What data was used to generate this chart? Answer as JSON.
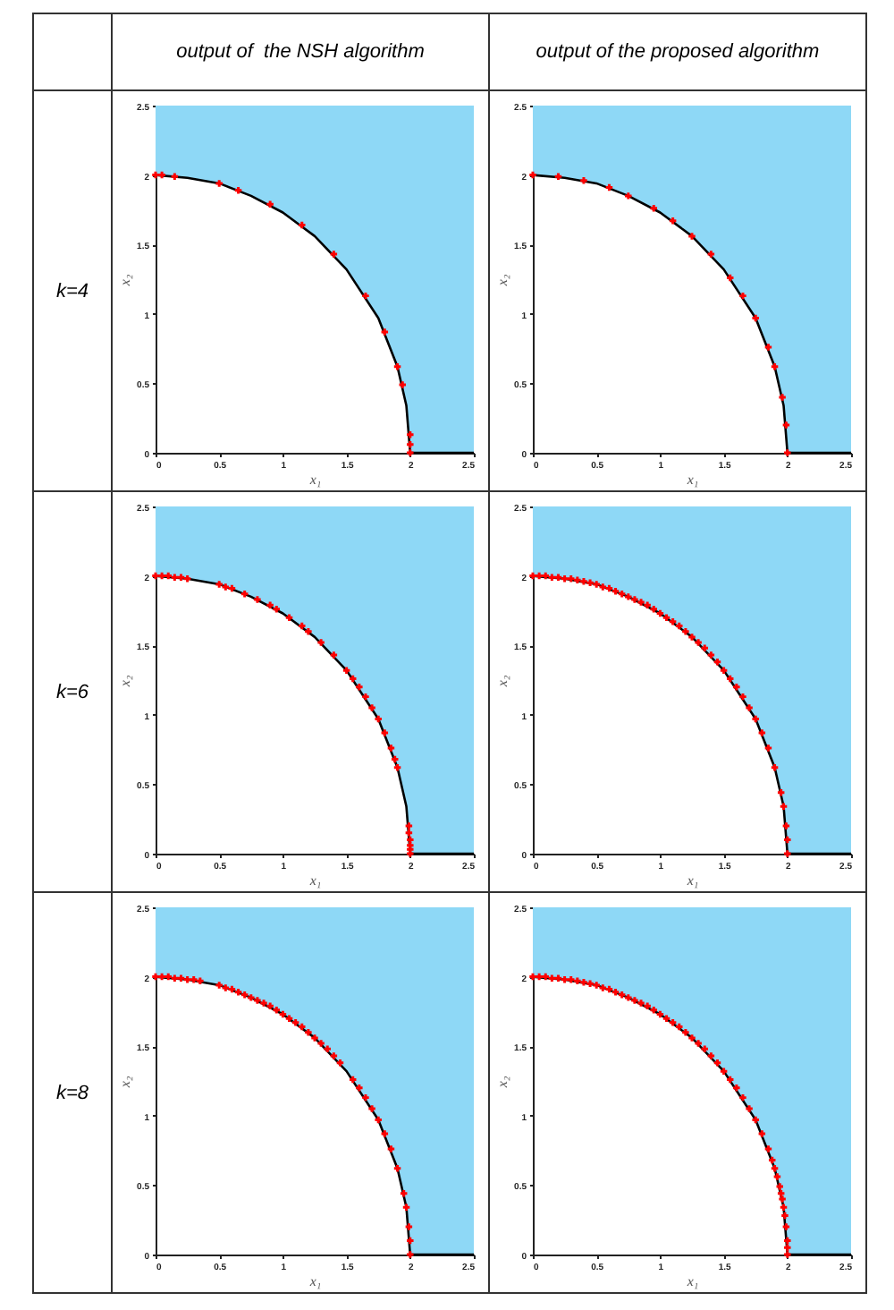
{
  "chart_data": [
    {
      "type": "scatter",
      "title": "output of  the NSH algorithm",
      "annotations": [
        "k=4"
      ],
      "xlabel": "x₁",
      "ylabel": "x₂",
      "xlim": [
        0,
        2.5
      ],
      "ylim": [
        0,
        2.5
      ],
      "xticks": [
        0,
        0.5,
        1,
        1.5,
        2,
        2.5
      ],
      "yticks": [
        0,
        0.5,
        1,
        1.5,
        2,
        2.5
      ],
      "series": [
        {
          "type": "line",
          "color": "#000000",
          "x": [
            0,
            0.25,
            0.5,
            0.75,
            1,
            1.25,
            1.5,
            1.75,
            1.9,
            1.97,
            2,
            2.5
          ],
          "values": [
            2,
            1.98,
            1.94,
            1.85,
            1.73,
            1.56,
            1.32,
            0.97,
            0.62,
            0.34,
            0,
            0
          ],
          "lower": [
            2,
            1.98,
            1.94,
            1.85,
            1.73,
            1.56,
            1.32,
            0.97,
            0.62,
            0.34,
            0,
            0
          ],
          "upper": [
            2.5,
            2.5,
            2.5,
            2.5,
            2.5,
            2.5,
            2.5,
            2.5,
            2.5,
            2.5,
            2.5,
            2.5
          ]
        },
        {
          "type": "scatter",
          "marker": "cross",
          "color": "#ff0000",
          "x": [
            0,
            0.05,
            0.15,
            0.5,
            0.65,
            0.9,
            1.15,
            1.4,
            1.65,
            1.8,
            1.9,
            1.94,
            2,
            2,
            2
          ],
          "values": [
            2,
            2,
            1.99,
            1.94,
            1.89,
            1.79,
            1.64,
            1.43,
            1.13,
            0.87,
            0.62,
            0.49,
            0.13,
            0.06,
            0
          ]
        }
      ]
    },
    {
      "type": "scatter",
      "title": "output of the proposed algorithm",
      "xlabel": "x₁",
      "ylabel": "x₂",
      "xlim": [
        0,
        2.5
      ],
      "ylim": [
        0,
        2.5
      ],
      "xticks": [
        0,
        0.5,
        1,
        1.5,
        2,
        2.5
      ],
      "yticks": [
        0,
        0.5,
        1,
        1.5,
        2,
        2.5
      ],
      "series": [
        {
          "type": "line",
          "color": "#000000",
          "x": [
            0,
            0.25,
            0.5,
            0.75,
            1,
            1.25,
            1.5,
            1.75,
            1.9,
            1.97,
            2,
            2.5
          ],
          "values": [
            2,
            1.98,
            1.94,
            1.85,
            1.73,
            1.56,
            1.32,
            0.97,
            0.62,
            0.34,
            0,
            0
          ],
          "lower": [
            2,
            1.98,
            1.94,
            1.85,
            1.73,
            1.56,
            1.32,
            0.97,
            0.62,
            0.34,
            0,
            0
          ],
          "upper": [
            2.5,
            2.5,
            2.5,
            2.5,
            2.5,
            2.5,
            2.5,
            2.5,
            2.5,
            2.5,
            2.5,
            2.5
          ]
        },
        {
          "type": "scatter",
          "marker": "cross",
          "color": "#ff0000",
          "x": [
            0,
            0.2,
            0.4,
            0.6,
            0.75,
            0.95,
            1.1,
            1.25,
            1.4,
            1.55,
            1.65,
            1.75,
            1.85,
            1.9,
            1.96,
            1.99,
            2
          ],
          "values": [
            2,
            1.99,
            1.96,
            1.91,
            1.85,
            1.76,
            1.67,
            1.56,
            1.43,
            1.26,
            1.13,
            0.97,
            0.76,
            0.62,
            0.4,
            0.2,
            0
          ]
        }
      ]
    },
    {
      "type": "scatter",
      "annotations": [
        "k=6"
      ],
      "xlabel": "x₁",
      "ylabel": "x₂",
      "xlim": [
        0,
        2.5
      ],
      "ylim": [
        0,
        2.5
      ],
      "xticks": [
        0,
        0.5,
        1,
        1.5,
        2,
        2.5
      ],
      "yticks": [
        0,
        0.5,
        1,
        1.5,
        2,
        2.5
      ],
      "series": [
        {
          "type": "line",
          "color": "#000000",
          "x": [
            0,
            0.25,
            0.5,
            0.75,
            1,
            1.25,
            1.5,
            1.75,
            1.9,
            1.97,
            2,
            2.5
          ],
          "values": [
            2,
            1.98,
            1.94,
            1.85,
            1.73,
            1.56,
            1.32,
            0.97,
            0.62,
            0.34,
            0,
            0
          ],
          "lower": [
            2,
            1.98,
            1.94,
            1.85,
            1.73,
            1.56,
            1.32,
            0.97,
            0.62,
            0.34,
            0,
            0
          ],
          "upper": [
            2.5,
            2.5,
            2.5,
            2.5,
            2.5,
            2.5,
            2.5,
            2.5,
            2.5,
            2.5,
            2.5,
            2.5
          ]
        },
        {
          "type": "scatter",
          "marker": "cross",
          "color": "#ff0000",
          "x": [
            0,
            0.05,
            0.1,
            0.15,
            0.2,
            0.25,
            0.5,
            0.55,
            0.6,
            0.7,
            0.8,
            0.9,
            0.95,
            1.05,
            1.15,
            1.2,
            1.3,
            1.4,
            1.5,
            1.55,
            1.6,
            1.65,
            1.7,
            1.75,
            1.8,
            1.85,
            1.88,
            1.9,
            1.99,
            1.99,
            2,
            2,
            2,
            2
          ],
          "values": [
            2,
            2,
            2,
            1.99,
            1.99,
            1.98,
            1.94,
            1.92,
            1.91,
            1.87,
            1.83,
            1.79,
            1.76,
            1.7,
            1.64,
            1.6,
            1.52,
            1.43,
            1.32,
            1.26,
            1.2,
            1.13,
            1.05,
            0.97,
            0.87,
            0.76,
            0.68,
            0.62,
            0.2,
            0.15,
            0.1,
            0.06,
            0.03,
            0
          ]
        }
      ]
    },
    {
      "type": "scatter",
      "xlabel": "x₁",
      "ylabel": "x₂",
      "xlim": [
        0,
        2.5
      ],
      "ylim": [
        0,
        2.5
      ],
      "xticks": [
        0,
        0.5,
        1,
        1.5,
        2,
        2.5
      ],
      "yticks": [
        0,
        0.5,
        1,
        1.5,
        2,
        2.5
      ],
      "series": [
        {
          "type": "line",
          "color": "#000000",
          "x": [
            0,
            0.25,
            0.5,
            0.75,
            1,
            1.25,
            1.5,
            1.75,
            1.9,
            1.97,
            2,
            2.5
          ],
          "values": [
            2,
            1.98,
            1.94,
            1.85,
            1.73,
            1.56,
            1.32,
            0.97,
            0.62,
            0.34,
            0,
            0
          ],
          "lower": [
            2,
            1.98,
            1.94,
            1.85,
            1.73,
            1.56,
            1.32,
            0.97,
            0.62,
            0.34,
            0,
            0
          ],
          "upper": [
            2.5,
            2.5,
            2.5,
            2.5,
            2.5,
            2.5,
            2.5,
            2.5,
            2.5,
            2.5,
            2.5,
            2.5
          ]
        },
        {
          "type": "scatter",
          "marker": "cross",
          "color": "#ff0000",
          "x": [
            0,
            0.05,
            0.1,
            0.15,
            0.2,
            0.25,
            0.3,
            0.35,
            0.4,
            0.45,
            0.5,
            0.55,
            0.6,
            0.65,
            0.7,
            0.75,
            0.8,
            0.85,
            0.9,
            0.95,
            1,
            1.05,
            1.1,
            1.15,
            1.2,
            1.25,
            1.3,
            1.35,
            1.4,
            1.45,
            1.5,
            1.55,
            1.6,
            1.65,
            1.7,
            1.75,
            1.8,
            1.85,
            1.9,
            1.95,
            1.97,
            1.99,
            2,
            2
          ],
          "values": [
            2,
            2,
            2,
            1.99,
            1.99,
            1.98,
            1.98,
            1.97,
            1.96,
            1.95,
            1.94,
            1.92,
            1.91,
            1.89,
            1.87,
            1.85,
            1.83,
            1.81,
            1.79,
            1.76,
            1.73,
            1.7,
            1.67,
            1.64,
            1.6,
            1.56,
            1.52,
            1.48,
            1.43,
            1.38,
            1.32,
            1.26,
            1.2,
            1.13,
            1.05,
            0.97,
            0.87,
            0.76,
            0.62,
            0.44,
            0.34,
            0.2,
            0.1,
            0
          ]
        }
      ]
    },
    {
      "type": "scatter",
      "annotations": [
        "k=8"
      ],
      "xlabel": "x₁",
      "ylabel": "x₂",
      "xlim": [
        0,
        2.5
      ],
      "ylim": [
        0,
        2.5
      ],
      "xticks": [
        0,
        0.5,
        1,
        1.5,
        2,
        2.5
      ],
      "yticks": [
        0,
        0.5,
        1,
        1.5,
        2,
        2.5
      ],
      "series": [
        {
          "type": "line",
          "color": "#000000",
          "x": [
            0,
            0.25,
            0.5,
            0.75,
            1,
            1.25,
            1.5,
            1.75,
            1.9,
            1.97,
            2,
            2.5
          ],
          "values": [
            2,
            1.98,
            1.94,
            1.85,
            1.73,
            1.56,
            1.32,
            0.97,
            0.62,
            0.34,
            0,
            0
          ],
          "lower": [
            2,
            1.98,
            1.94,
            1.85,
            1.73,
            1.56,
            1.32,
            0.97,
            0.62,
            0.34,
            0,
            0
          ],
          "upper": [
            2.5,
            2.5,
            2.5,
            2.5,
            2.5,
            2.5,
            2.5,
            2.5,
            2.5,
            2.5,
            2.5,
            2.5
          ]
        },
        {
          "type": "scatter",
          "marker": "cross",
          "color": "#ff0000",
          "x": [
            0,
            0.05,
            0.1,
            0.15,
            0.2,
            0.25,
            0.3,
            0.35,
            0.5,
            0.55,
            0.6,
            0.65,
            0.7,
            0.75,
            0.8,
            0.85,
            0.9,
            0.95,
            1,
            1.05,
            1.1,
            1.15,
            1.2,
            1.25,
            1.3,
            1.35,
            1.4,
            1.45,
            1.55,
            1.6,
            1.65,
            1.7,
            1.75,
            1.8,
            1.85,
            1.9,
            1.95,
            1.97,
            1.99,
            2,
            2
          ],
          "values": [
            2,
            2,
            2,
            1.99,
            1.99,
            1.98,
            1.98,
            1.97,
            1.94,
            1.92,
            1.91,
            1.89,
            1.87,
            1.85,
            1.83,
            1.81,
            1.79,
            1.76,
            1.73,
            1.7,
            1.67,
            1.64,
            1.6,
            1.56,
            1.52,
            1.48,
            1.43,
            1.38,
            1.26,
            1.2,
            1.13,
            1.05,
            0.97,
            0.87,
            0.76,
            0.62,
            0.44,
            0.34,
            0.2,
            0.1,
            0
          ]
        }
      ]
    },
    {
      "type": "scatter",
      "xlabel": "x₁",
      "ylabel": "x₂",
      "xlim": [
        0,
        2.5
      ],
      "ylim": [
        0,
        2.5
      ],
      "xticks": [
        0,
        0.5,
        1,
        1.5,
        2,
        2.5
      ],
      "yticks": [
        0,
        0.5,
        1,
        1.5,
        2,
        2.5
      ],
      "series": [
        {
          "type": "line",
          "color": "#000000",
          "x": [
            0,
            0.25,
            0.5,
            0.75,
            1,
            1.25,
            1.5,
            1.75,
            1.9,
            1.97,
            2,
            2.5
          ],
          "values": [
            2,
            1.98,
            1.94,
            1.85,
            1.73,
            1.56,
            1.32,
            0.97,
            0.62,
            0.34,
            0,
            0
          ],
          "lower": [
            2,
            1.98,
            1.94,
            1.85,
            1.73,
            1.56,
            1.32,
            0.97,
            0.62,
            0.34,
            0,
            0
          ],
          "upper": [
            2.5,
            2.5,
            2.5,
            2.5,
            2.5,
            2.5,
            2.5,
            2.5,
            2.5,
            2.5,
            2.5,
            2.5
          ]
        },
        {
          "type": "scatter",
          "marker": "cross",
          "color": "#ff0000",
          "x": [
            0,
            0.05,
            0.1,
            0.15,
            0.2,
            0.25,
            0.3,
            0.35,
            0.4,
            0.45,
            0.5,
            0.55,
            0.6,
            0.65,
            0.7,
            0.75,
            0.8,
            0.85,
            0.9,
            0.95,
            1,
            1.05,
            1.1,
            1.15,
            1.2,
            1.25,
            1.3,
            1.35,
            1.4,
            1.45,
            1.5,
            1.55,
            1.6,
            1.65,
            1.7,
            1.75,
            1.8,
            1.85,
            1.88,
            1.9,
            1.92,
            1.94,
            1.95,
            1.96,
            1.97,
            1.98,
            1.99,
            2,
            2,
            2
          ],
          "values": [
            2,
            2,
            2,
            1.99,
            1.99,
            1.98,
            1.98,
            1.97,
            1.96,
            1.95,
            1.94,
            1.92,
            1.91,
            1.89,
            1.87,
            1.85,
            1.83,
            1.81,
            1.79,
            1.76,
            1.73,
            1.7,
            1.67,
            1.64,
            1.6,
            1.56,
            1.52,
            1.48,
            1.43,
            1.38,
            1.32,
            1.26,
            1.2,
            1.13,
            1.05,
            0.97,
            0.87,
            0.76,
            0.68,
            0.62,
            0.56,
            0.49,
            0.44,
            0.4,
            0.34,
            0.28,
            0.2,
            0.1,
            0.05,
            0
          ]
        }
      ]
    }
  ]
}
